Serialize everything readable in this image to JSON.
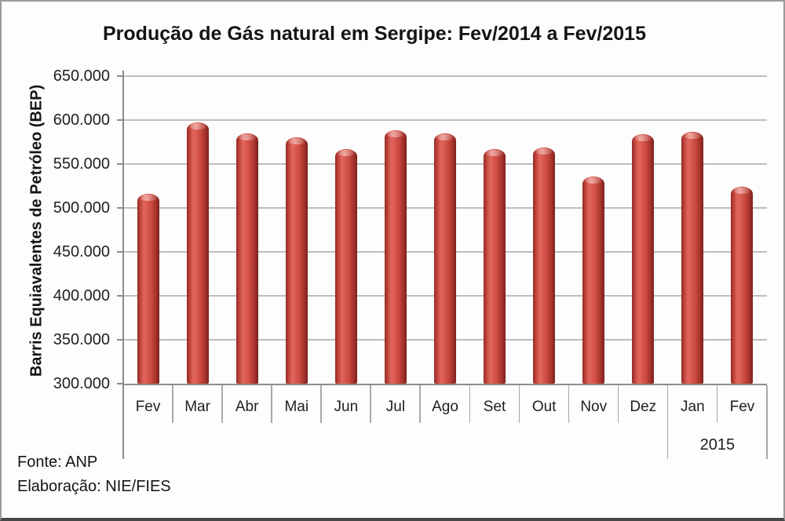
{
  "chart_data": {
    "type": "bar",
    "title": "Produção de Gás natural em Sergipe: Fev/2014 a Fev/2015",
    "ylabel": "Barris Equiavalentes de Petróleo (BEP)",
    "xlabel": "",
    "categories": [
      "Fev",
      "Mar",
      "Abr",
      "Mai",
      "Jun",
      "Jul",
      "Ago",
      "Set",
      "Out",
      "Nov",
      "Dez",
      "Jan",
      "Fev"
    ],
    "values": [
      516000,
      597000,
      585000,
      580000,
      567000,
      588000,
      585000,
      567000,
      569000,
      536000,
      584000,
      587000,
      524000
    ],
    "ylim": [
      300000,
      650000
    ],
    "ytick_step": 50000,
    "ytick_labels_top_to_bottom": [
      "650.000",
      "600.000",
      "550.000",
      "500.000",
      "450.000",
      "400.000",
      "350.000",
      "300.000"
    ],
    "grid": true,
    "legend": false,
    "year_group": {
      "label": "2015",
      "start_index": 11,
      "end_index": 12
    },
    "bar_color": "#c0504d"
  },
  "colors": {
    "bar_main": "#cb4a41",
    "bar_edge_dark": "#7d211d",
    "bar_highlight": "#e0675d",
    "gridline": "#bdbdbd",
    "axis": "#8c8c8c",
    "frame_border": "#9b9b9b",
    "frame_bottom_bar": "#474747",
    "background": "#fdfdfd",
    "text": "#141414"
  },
  "footer": {
    "source": "Fonte: ANP",
    "elaboration": "Elaboração: NIE/FIES"
  }
}
